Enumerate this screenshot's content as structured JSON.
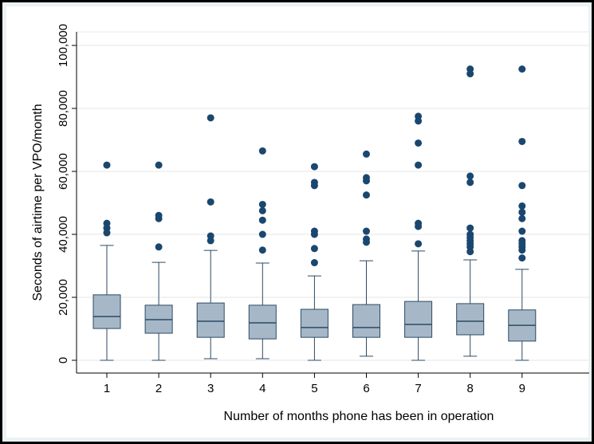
{
  "chart_data": {
    "type": "box",
    "x_label": "Number of months phone has been in operation",
    "y_label": "Seconds of airtime per VPO/month",
    "categories": [
      "1",
      "2",
      "3",
      "4",
      "5",
      "6",
      "7",
      "8",
      "9"
    ],
    "boxes": [
      {
        "whislo": 0,
        "q1": 10100,
        "med": 13900,
        "q3": 20800,
        "whishi": 36500,
        "fliers": [
          62000,
          43500,
          42000,
          40500
        ]
      },
      {
        "whislo": 0,
        "q1": 8600,
        "med": 12900,
        "q3": 17500,
        "whishi": 31100,
        "fliers": [
          62000,
          46000,
          45000,
          36000
        ]
      },
      {
        "whislo": 500,
        "q1": 7300,
        "med": 12400,
        "q3": 18200,
        "whishi": 34900,
        "fliers": [
          77000,
          50300,
          39500,
          38000
        ]
      },
      {
        "whislo": 500,
        "q1": 6800,
        "med": 11900,
        "q3": 17500,
        "whishi": 30900,
        "fliers": [
          66500,
          49500,
          47500,
          44500,
          40000,
          35000
        ]
      },
      {
        "whislo": 0,
        "q1": 7300,
        "med": 10400,
        "q3": 16200,
        "whishi": 26800,
        "fliers": [
          61500,
          56500,
          55500,
          41000,
          40000,
          35500,
          31000
        ]
      },
      {
        "whislo": 1300,
        "q1": 7300,
        "med": 10400,
        "q3": 17700,
        "whishi": 31600,
        "fliers": [
          65500,
          58000,
          57000,
          52500,
          41000,
          38500,
          37500
        ]
      },
      {
        "whislo": 0,
        "q1": 7300,
        "med": 11400,
        "q3": 18700,
        "whishi": 34700,
        "fliers": [
          77500,
          76000,
          69000,
          62000,
          43500,
          42500,
          37000
        ]
      },
      {
        "whislo": 1300,
        "q1": 8100,
        "med": 12400,
        "q3": 18000,
        "whishi": 31900,
        "fliers": [
          92500,
          91000,
          58500,
          56500,
          42000,
          40000,
          39000,
          38000,
          37000,
          36000,
          34500
        ]
      },
      {
        "whislo": 0,
        "q1": 6100,
        "med": 11100,
        "q3": 16000,
        "whishi": 28900,
        "fliers": [
          92500,
          69500,
          55500,
          49000,
          47000,
          45000,
          41000,
          38000,
          37000,
          36000,
          35000,
          32500
        ]
      }
    ],
    "ylim": [
      0,
      100000
    ],
    "yticks": [
      0,
      {
        "value": 20000,
        "label": "20,000"
      },
      {
        "value": 40000,
        "label": "40,000"
      },
      {
        "value": 60000,
        "label": "60,000"
      },
      {
        "value": 80000,
        "label": "80,000"
      },
      {
        "value": 100000,
        "label": "100,000"
      }
    ],
    "grid": true,
    "box_color": "#a6b8c8",
    "line_color": "#2c4a63",
    "marker_color": "#1a476f"
  }
}
